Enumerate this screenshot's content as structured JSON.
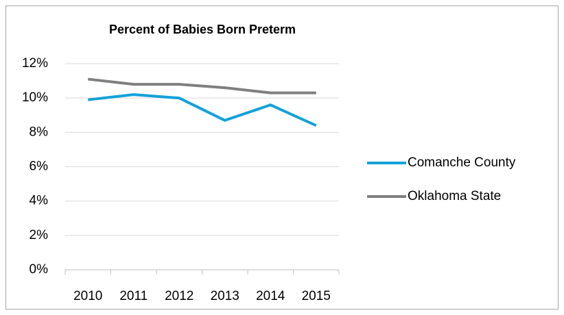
{
  "chart_data": {
    "type": "line",
    "title": "Percent of Babies Born Preterm",
    "categories": [
      "2010",
      "2011",
      "2012",
      "2013",
      "2014",
      "2015"
    ],
    "series": [
      {
        "name": "Comanche County",
        "color": "#14a1d8",
        "values": [
          9.9,
          10.2,
          10.0,
          8.7,
          9.6,
          8.4
        ]
      },
      {
        "name": "Oklahoma State",
        "color": "#7f7f7f",
        "values": [
          11.1,
          10.8,
          10.8,
          10.6,
          10.3,
          10.3
        ]
      }
    ],
    "ylim": [
      0,
      12
    ],
    "yticks": [
      {
        "value": 0,
        "label": "0%"
      },
      {
        "value": 2,
        "label": "2%"
      },
      {
        "value": 4,
        "label": "4%"
      },
      {
        "value": 6,
        "label": "6%"
      },
      {
        "value": 8,
        "label": "8%"
      },
      {
        "value": 10,
        "label": "10%"
      },
      {
        "value": 12,
        "label": "12%"
      }
    ],
    "grid": true,
    "legend": "right"
  }
}
